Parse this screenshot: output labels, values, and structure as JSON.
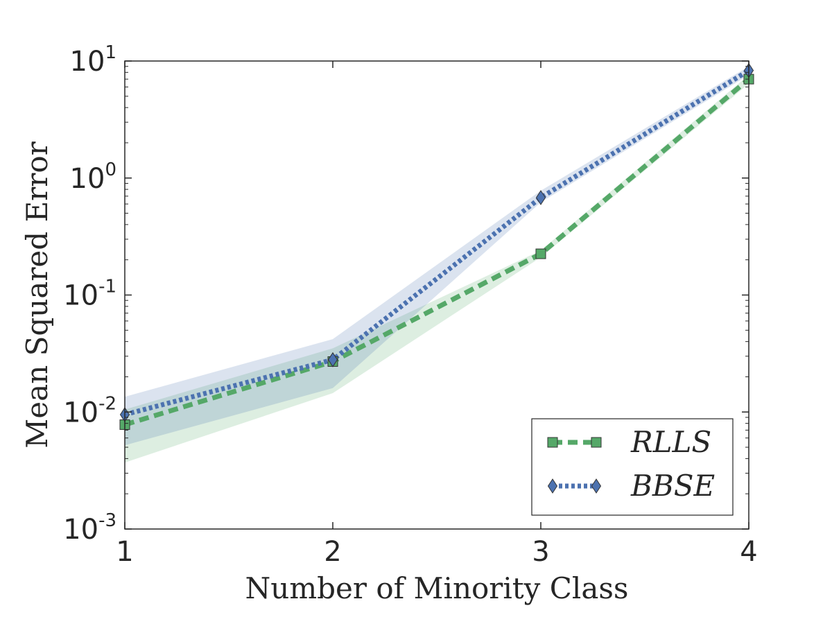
{
  "chart_data": {
    "type": "line",
    "xlabel": "Number of Minority Class",
    "ylabel": "Mean Squared Error",
    "x": [
      1,
      2,
      3,
      4
    ],
    "xlim": [
      1,
      4
    ],
    "xticks": [
      "1",
      "2",
      "3",
      "4"
    ],
    "yscale": "log",
    "ylim": [
      0.001,
      10
    ],
    "yticks": [
      {
        "base": "10",
        "exp": "-3"
      },
      {
        "base": "10",
        "exp": "-2"
      },
      {
        "base": "10",
        "exp": "-1"
      },
      {
        "base": "10",
        "exp": "0"
      },
      {
        "base": "10",
        "exp": "1"
      }
    ],
    "grid": false,
    "legend_position": "bottom-right",
    "series": [
      {
        "name": "RLLS",
        "color": "#55a868",
        "line_style": "dashed",
        "marker": "square",
        "values": [
          0.0078,
          0.027,
          0.225,
          7.0
        ],
        "lower": [
          0.0037,
          0.0145,
          0.21,
          6.4
        ],
        "upper": [
          0.0105,
          0.035,
          0.24,
          7.6
        ]
      },
      {
        "name": "BBSE",
        "color": "#4c72b0",
        "line_style": "dotted",
        "marker": "diamond",
        "values": [
          0.0095,
          0.028,
          0.68,
          8.3
        ],
        "lower": [
          0.0052,
          0.016,
          0.62,
          7.6
        ],
        "upper": [
          0.0135,
          0.042,
          0.78,
          9.0
        ]
      }
    ]
  }
}
